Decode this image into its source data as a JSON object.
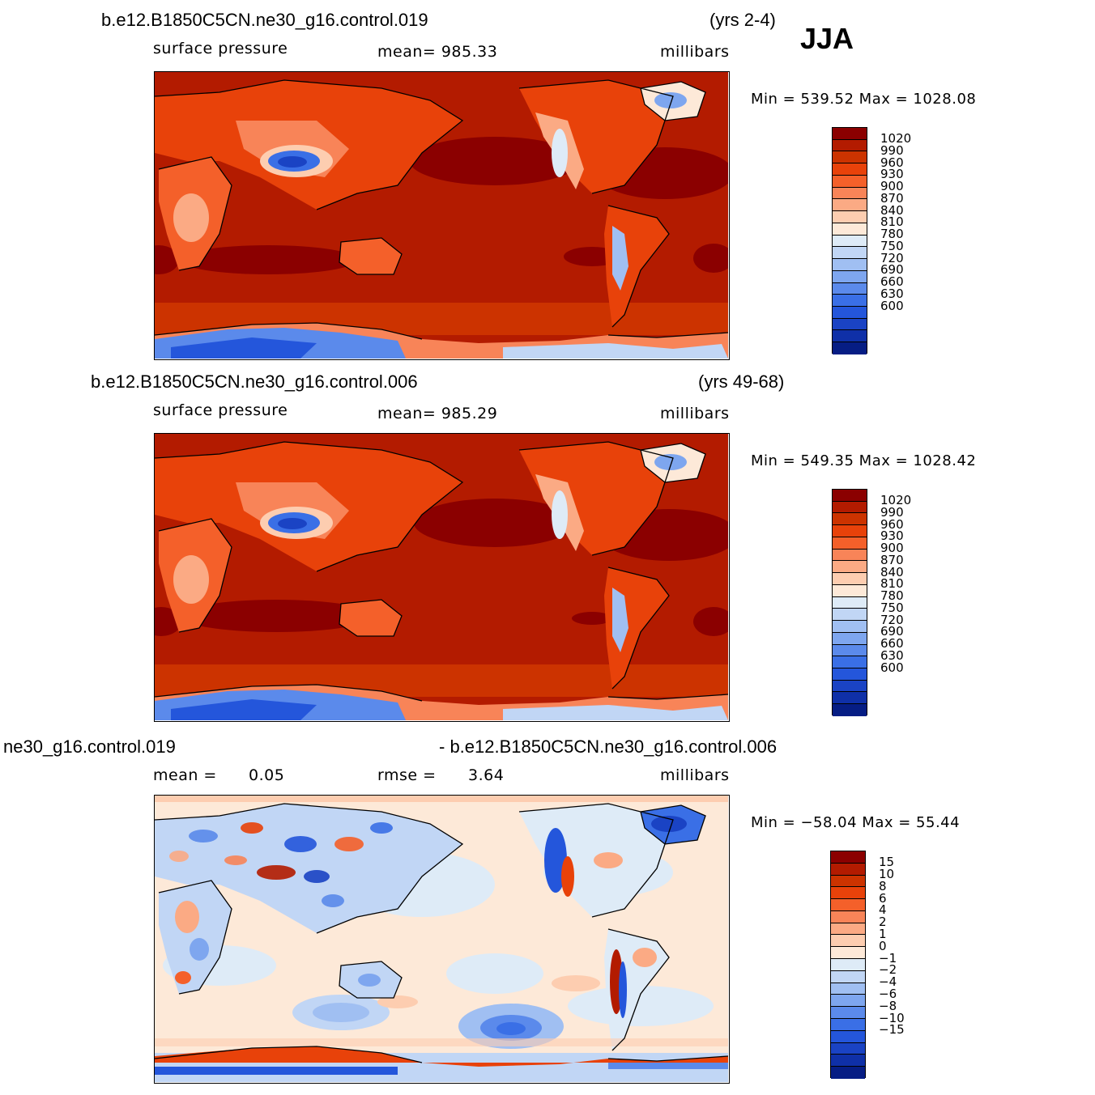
{
  "season": "JJA",
  "panels": [
    {
      "case": "b.e12.B1850C5CN.ne30_g16.control.019",
      "years": "(yrs 2-4)",
      "variable": "surface pressure",
      "stat": "mean=  985.33",
      "units": "millibars",
      "minmax": "Min  =  539.52  Max  =  1028.08",
      "colorbar": {
        "colors": [
          "#8b0000",
          "#b31b00",
          "#cc3300",
          "#e8420a",
          "#f4602a",
          "#f88458",
          "#fbaa84",
          "#fdcdb0",
          "#fde9d8",
          "#deebf7",
          "#c1d6f5",
          "#a0bff2",
          "#7ea6ef",
          "#5b8aeb",
          "#3a6fe6",
          "#2456db",
          "#1a43c4",
          "#0f30a8",
          "#061d84"
        ],
        "labels": [
          "1020",
          "990",
          "960",
          "930",
          "900",
          "870",
          "840",
          "810",
          "780",
          "750",
          "720",
          "690",
          "660",
          "630",
          "600"
        ]
      }
    },
    {
      "case": "b.e12.B1850C5CN.ne30_g16.control.006",
      "years": "(yrs 49-68)",
      "variable": "surface pressure",
      "stat": "mean=  985.29",
      "units": "millibars",
      "minmax": "Min  =  549.35  Max  =  1028.42",
      "colorbar": {
        "colors": [
          "#8b0000",
          "#b31b00",
          "#cc3300",
          "#e8420a",
          "#f4602a",
          "#f88458",
          "#fbaa84",
          "#fdcdb0",
          "#fde9d8",
          "#deebf7",
          "#c1d6f5",
          "#a0bff2",
          "#7ea6ef",
          "#5b8aeb",
          "#3a6fe6",
          "#2456db",
          "#1a43c4",
          "#0f30a8",
          "#061d84"
        ],
        "labels": [
          "1020",
          "990",
          "960",
          "930",
          "900",
          "870",
          "840",
          "810",
          "780",
          "750",
          "720",
          "690",
          "660",
          "630",
          "600"
        ]
      }
    },
    {
      "case_left": "ne30_g16.control.019",
      "case_right": "- b.e12.B1850C5CN.ne30_g16.control.006",
      "mean_label": "mean  =",
      "mean_value": "0.05",
      "rmse_label": "rmse  =",
      "rmse_value": "3.64",
      "units": "millibars",
      "minmax": "Min  = −58.04  Max  =   55.44",
      "colorbar": {
        "colors": [
          "#8b0000",
          "#b31b00",
          "#cc3300",
          "#e8420a",
          "#f4602a",
          "#f88458",
          "#fbaa84",
          "#fdcdb0",
          "#fde9d8",
          "#deebf7",
          "#c1d6f5",
          "#a0bff2",
          "#7ea6ef",
          "#5b8aeb",
          "#3a6fe6",
          "#2456db",
          "#1a43c4",
          "#0f30a8",
          "#061d84"
        ],
        "labels": [
          "15",
          "10",
          "8",
          "6",
          "4",
          "2",
          "1",
          "0",
          "−1",
          "−2",
          "−4",
          "−6",
          "−8",
          "−10",
          "−15"
        ]
      }
    }
  ]
}
